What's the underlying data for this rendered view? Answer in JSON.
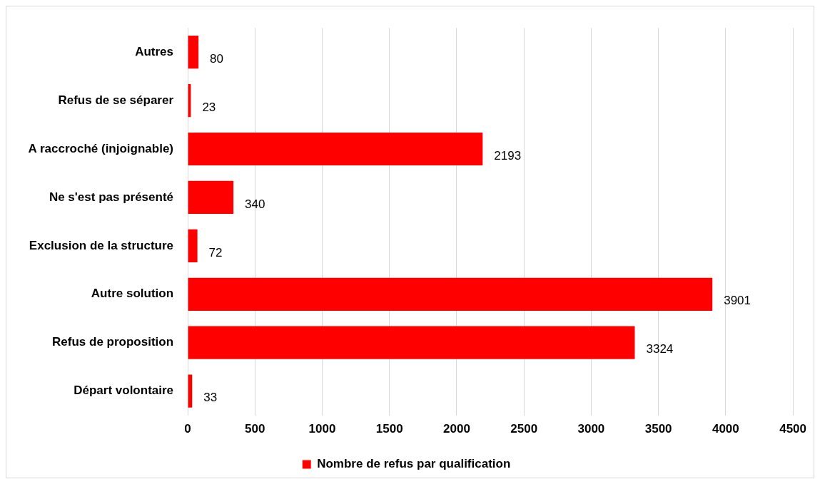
{
  "chart_data": {
    "type": "bar",
    "orientation": "horizontal",
    "categories": [
      "Autres",
      "Refus de se séparer",
      "A raccroché (injoignable)",
      "Ne s'est pas présenté",
      "Exclusion de la structure",
      "Autre solution",
      "Refus de proposition",
      "Départ volontaire"
    ],
    "series": [
      {
        "name": "Nombre de refus par qualification",
        "color": "#ff0000",
        "values": [
          80,
          23,
          2193,
          340,
          72,
          3901,
          3324,
          33
        ]
      }
    ],
    "xlim": [
      0,
      4500
    ],
    "xticks": [
      0,
      500,
      1000,
      1500,
      2000,
      2500,
      3000,
      3500,
      4000,
      4500
    ],
    "grid": "x",
    "legend": "bottom",
    "data_labels": true
  }
}
